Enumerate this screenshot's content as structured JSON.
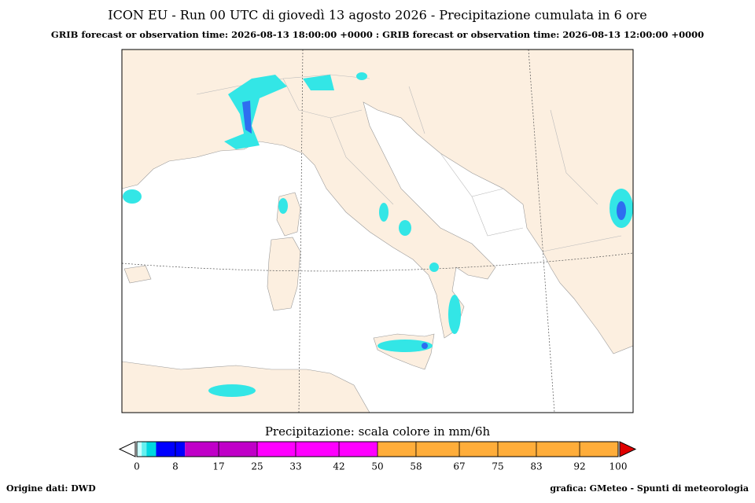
{
  "header": {
    "title": "ICON EU -  Run 00 UTC di giovedì 13 agosto 2026 -  Precipitazione cumulata in 6 ore",
    "subtitle": "GRIB forecast or observation time: 2026-08-13 18:00:00 +0000 : GRIB forecast or observation time: 2026-08-13 12:00:00 +0000"
  },
  "colorbar": {
    "title": "Precipitazione: scala colore in mm/6h",
    "ticks": [
      0,
      8,
      17,
      25,
      33,
      42,
      50,
      58,
      67,
      75,
      83,
      92,
      100
    ],
    "segments": [
      {
        "from": 0,
        "to": 1,
        "color": "#c8ffff"
      },
      {
        "from": 1,
        "to": 2,
        "color": "#66f0f0"
      },
      {
        "from": 2,
        "to": 4,
        "color": "#00d8e0"
      },
      {
        "from": 4,
        "to": 10,
        "color": "#0000ff"
      },
      {
        "from": 10,
        "to": 25,
        "color": "#c000c8"
      },
      {
        "from": 25,
        "to": 50,
        "color": "#ff00ff"
      },
      {
        "from": 50,
        "to": 100,
        "color": "#ffad3a"
      }
    ]
  },
  "footer": {
    "source": "Origine dati: DWD",
    "credit": "grafica: GMeteo - Spunti di meteorologia"
  }
}
